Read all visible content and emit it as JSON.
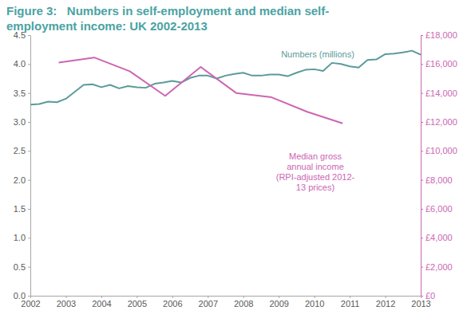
{
  "chart_data": {
    "type": "line",
    "title": "Figure 3:   Numbers in self-employment and median self-employment income: UK 2002-2013",
    "xlim": [
      2002,
      2013
    ],
    "xticks": [
      2002,
      2003,
      2004,
      2005,
      2006,
      2007,
      2008,
      2009,
      2010,
      2011,
      2012,
      2013
    ],
    "ylim": [
      0,
      4.5
    ],
    "yticks": [
      {
        "value": 0,
        "label": "0.0"
      },
      0.5,
      {
        "value": 1,
        "label": "1.0"
      },
      1.5,
      {
        "value": 2,
        "label": "2.0"
      },
      2.5,
      {
        "value": 3,
        "label": "3.0"
      },
      3.5,
      {
        "value": 4,
        "label": "4.0"
      },
      4.5
    ],
    "y2lim": [
      0,
      18000
    ],
    "y2ticks": [
      {
        "value": 0,
        "label": "£0"
      },
      {
        "value": 2000,
        "label": "£2,000"
      },
      {
        "value": 4000,
        "label": "£4,000"
      },
      {
        "value": 6000,
        "label": "£6,000"
      },
      {
        "value": 8000,
        "label": "£8,000"
      },
      {
        "value": 10000,
        "label": "£10,000"
      },
      {
        "value": 12000,
        "label": "£12,000"
      },
      {
        "value": 14000,
        "label": "£14,000"
      },
      {
        "value": 16000,
        "label": "£16,000"
      },
      {
        "value": 18000,
        "label": "£18,000"
      }
    ],
    "grid": false,
    "series": [
      {
        "name": "Numbers (millions)",
        "color": "#5b9b99",
        "axis": "y",
        "x": [
          2002,
          2002.25,
          2002.5,
          2002.75,
          2003,
          2003.25,
          2003.5,
          2003.75,
          2004,
          2004.25,
          2004.5,
          2004.75,
          2005,
          2005.25,
          2005.5,
          2005.75,
          2006,
          2006.25,
          2006.5,
          2006.75,
          2007,
          2007.25,
          2007.5,
          2007.75,
          2008,
          2008.25,
          2008.5,
          2008.75,
          2009,
          2009.25,
          2009.5,
          2009.75,
          2010,
          2010.25,
          2010.5,
          2010.75,
          2011,
          2011.25,
          2011.5,
          2011.75,
          2012,
          2012.25,
          2012.5,
          2012.75,
          2013
        ],
        "values": [
          3.3,
          3.31,
          3.35,
          3.34,
          3.4,
          3.52,
          3.64,
          3.65,
          3.6,
          3.64,
          3.58,
          3.62,
          3.6,
          3.59,
          3.66,
          3.68,
          3.71,
          3.68,
          3.76,
          3.8,
          3.8,
          3.75,
          3.8,
          3.83,
          3.85,
          3.8,
          3.8,
          3.82,
          3.82,
          3.79,
          3.85,
          3.9,
          3.91,
          3.88,
          4.02,
          4.0,
          3.96,
          3.94,
          4.07,
          4.08,
          4.17,
          4.18,
          4.2,
          4.23,
          4.16
        ]
      },
      {
        "name": "Median gross annual income (RPI-adjusted 2012-13 prices)",
        "color": "#cc66b3",
        "axis": "y2",
        "x": [
          2002.8,
          2003.8,
          2004.8,
          2005.8,
          2006.8,
          2007.8,
          2008.8,
          2009.8,
          2010.8
        ],
        "values": [
          16100,
          16450,
          15500,
          13800,
          15800,
          14000,
          13700,
          12700,
          11900
        ]
      }
    ]
  }
}
